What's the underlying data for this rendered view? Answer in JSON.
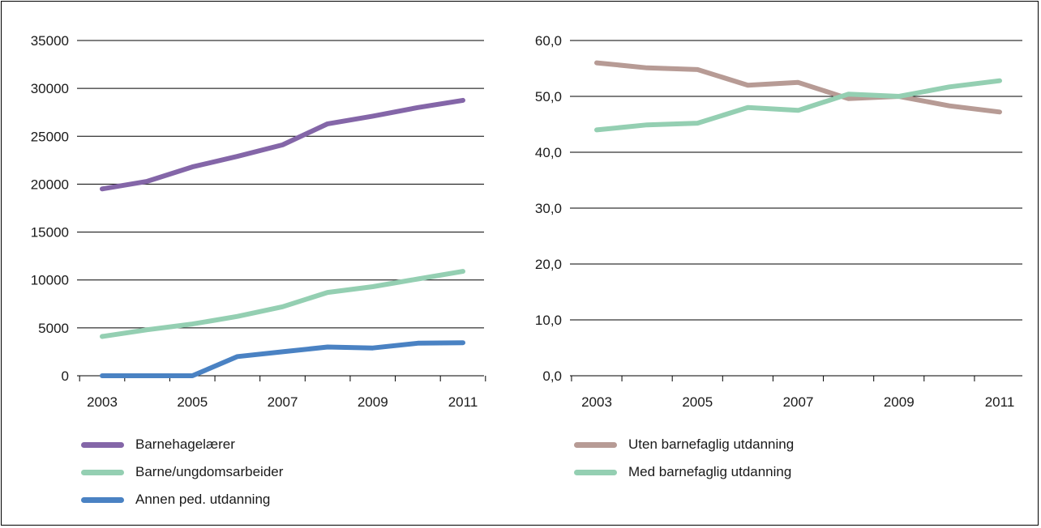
{
  "colors": {
    "barnehagelaerer": "#8466a8",
    "barne_ungdom": "#94cfb2",
    "annen_ped": "#4a82c3",
    "uten": "#b79b95",
    "med": "#94cfb2"
  },
  "chart_data": [
    {
      "type": "line",
      "title": "",
      "xlabel": "",
      "ylabel": "",
      "x": [
        2003,
        2004,
        2005,
        2006,
        2007,
        2008,
        2009,
        2010,
        2011
      ],
      "x_tick_labels": [
        "2003",
        "2005",
        "2007",
        "2009",
        "2011"
      ],
      "y_tick_labels": [
        "0",
        "5000",
        "10000",
        "15000",
        "20000",
        "25000",
        "30000",
        "35000"
      ],
      "ylim": [
        0,
        35000
      ],
      "grid": true,
      "legend_position": "bottom",
      "series": [
        {
          "name": "Barnehagelærer",
          "color": "#8466a8",
          "values": [
            19500,
            20300,
            21800,
            22900,
            24100,
            26300,
            27100,
            28000,
            28750
          ]
        },
        {
          "name": "Barne/ungdomsarbeider",
          "color": "#94cfb2",
          "values": [
            4100,
            4800,
            5400,
            6200,
            7200,
            8700,
            9300,
            10100,
            10900
          ]
        },
        {
          "name": "Annen ped. utdanning",
          "color": "#4a82c3",
          "values": [
            0,
            0,
            0,
            2000,
            2500,
            3000,
            2900,
            3400,
            3450
          ]
        }
      ]
    },
    {
      "type": "line",
      "title": "",
      "xlabel": "",
      "ylabel": "",
      "x": [
        2003,
        2004,
        2005,
        2006,
        2007,
        2008,
        2009,
        2010,
        2011
      ],
      "x_tick_labels": [
        "2003",
        "2005",
        "2007",
        "2009",
        "2011"
      ],
      "y_tick_labels": [
        "0,0",
        "10,0",
        "20,0",
        "30,0",
        "40,0",
        "50,0",
        "60,0"
      ],
      "ylim": [
        0,
        60
      ],
      "grid": true,
      "legend_position": "bottom",
      "series": [
        {
          "name": "Uten barnefaglig utdanning",
          "color": "#b79b95",
          "values": [
            56.0,
            55.1,
            54.8,
            52.0,
            52.5,
            49.6,
            50.0,
            48.3,
            47.2
          ]
        },
        {
          "name": "Med barnefaglig utdanning",
          "color": "#94cfb2",
          "values": [
            44.0,
            44.9,
            45.2,
            48.0,
            47.5,
            50.4,
            50.0,
            51.7,
            52.8
          ]
        }
      ]
    }
  ]
}
